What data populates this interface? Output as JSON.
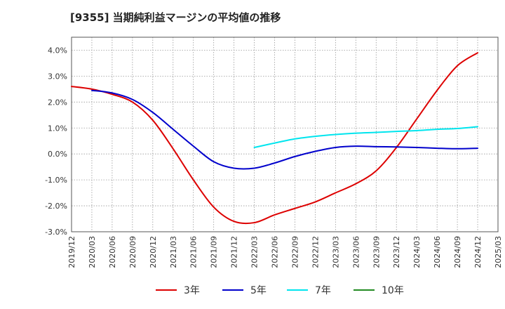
{
  "chart_data": {
    "type": "line",
    "title": "[9355]  当期純利益マージンの平均値の推移",
    "xlabel": "",
    "ylabel": "",
    "ylim": [
      -3.0,
      4.5
    ],
    "grid": true,
    "legend_position": "bottom",
    "y_ticks": [
      "-3.0%",
      "-2.0%",
      "-1.0%",
      "0.0%",
      "1.0%",
      "2.0%",
      "3.0%",
      "4.0%"
    ],
    "x_ticks": [
      "2019/12",
      "2020/03",
      "2020/06",
      "2020/09",
      "2020/12",
      "2021/03",
      "2021/06",
      "2021/09",
      "2021/12",
      "2022/03",
      "2022/06",
      "2022/09",
      "2022/12",
      "2023/03",
      "2023/06",
      "2023/09",
      "2023/12",
      "2024/03",
      "2024/06",
      "2024/09",
      "2024/12",
      "2025/03"
    ],
    "series": [
      {
        "name": "3年",
        "color": "#dd0000",
        "x": [
          "2019/12",
          "2020/03",
          "2020/06",
          "2020/09",
          "2020/12",
          "2021/03",
          "2021/06",
          "2021/09",
          "2021/12",
          "2022/03",
          "2022/06",
          "2022/09",
          "2022/12",
          "2023/03",
          "2023/06",
          "2023/09",
          "2023/12",
          "2024/03",
          "2024/06",
          "2024/09",
          "2024/12"
        ],
        "values": [
          2.6,
          2.5,
          2.3,
          2.0,
          1.3,
          0.2,
          -1.0,
          -2.05,
          -2.6,
          -2.65,
          -2.35,
          -2.1,
          -1.85,
          -1.5,
          -1.15,
          -0.65,
          0.25,
          1.35,
          2.45,
          3.4,
          3.9
        ]
      },
      {
        "name": "5年",
        "color": "#0000cc",
        "x": [
          "2020/03",
          "2020/06",
          "2020/09",
          "2020/12",
          "2021/03",
          "2021/06",
          "2021/09",
          "2021/12",
          "2022/03",
          "2022/06",
          "2022/09",
          "2022/12",
          "2023/03",
          "2023/06",
          "2023/09",
          "2023/12",
          "2024/03",
          "2024/06",
          "2024/09",
          "2024/12"
        ],
        "values": [
          2.45,
          2.35,
          2.1,
          1.6,
          0.95,
          0.3,
          -0.3,
          -0.55,
          -0.55,
          -0.35,
          -0.1,
          0.1,
          0.25,
          0.3,
          0.28,
          0.27,
          0.25,
          0.22,
          0.2,
          0.22
        ]
      },
      {
        "name": "7年",
        "color": "#00e5ee",
        "x": [
          "2022/03",
          "2022/06",
          "2022/09",
          "2022/12",
          "2023/03",
          "2023/06",
          "2023/09",
          "2023/12",
          "2024/03",
          "2024/06",
          "2024/09",
          "2024/12"
        ],
        "values": [
          0.25,
          0.42,
          0.58,
          0.68,
          0.75,
          0.8,
          0.83,
          0.87,
          0.9,
          0.95,
          0.98,
          1.05
        ]
      },
      {
        "name": "10年",
        "color": "#228b22",
        "x": [],
        "values": []
      }
    ]
  }
}
